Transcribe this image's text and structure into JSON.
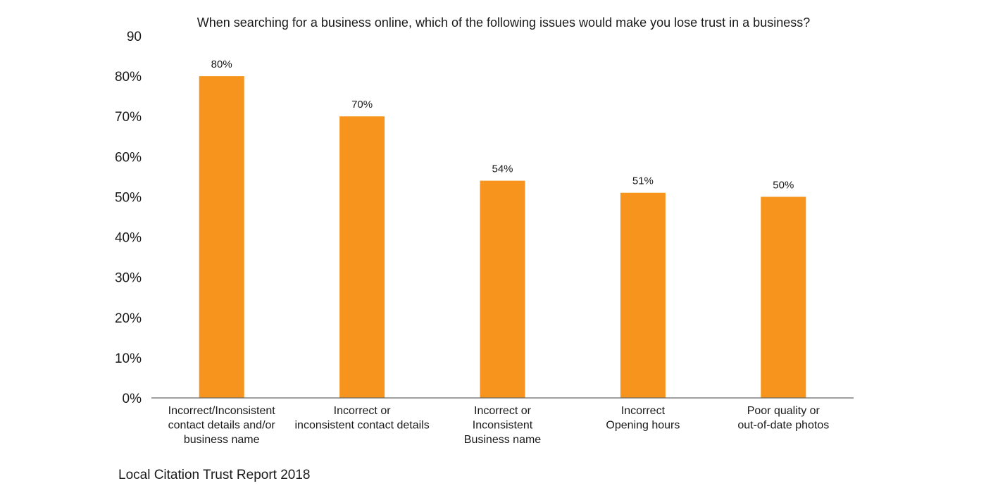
{
  "chart_data": {
    "type": "bar",
    "title": "When searching for a business online, which of the following issues would make you lose trust in a business?",
    "categories": [
      [
        "Incorrect/Inconsistent",
        "contact details and/or",
        "business name"
      ],
      [
        "Incorrect or",
        "inconsistent contact details"
      ],
      [
        "Incorrect or",
        "Inconsistent",
        "Business name"
      ],
      [
        "Incorrect",
        "Opening hours"
      ],
      [
        "Poor quality or",
        "out-of-date photos"
      ]
    ],
    "values": [
      80,
      70,
      54,
      51,
      50
    ],
    "data_labels": [
      "80%",
      "70%",
      "54%",
      "51%",
      "50%"
    ],
    "yticks": [
      {
        "value": 0,
        "label": "0%"
      },
      {
        "value": 10,
        "label": "10%"
      },
      {
        "value": 20,
        "label": "20%"
      },
      {
        "value": 30,
        "label": "30%"
      },
      {
        "value": 40,
        "label": "40%"
      },
      {
        "value": 50,
        "label": "50%"
      },
      {
        "value": 60,
        "label": "60%"
      },
      {
        "value": 70,
        "label": "70%"
      },
      {
        "value": 80,
        "label": "80%"
      },
      {
        "value": 90,
        "label": "90"
      }
    ],
    "ylim": [
      0,
      90
    ],
    "xlabel": "",
    "ylabel": "",
    "grid": false,
    "legend": "none",
    "bar_color": "#F7941D",
    "axis_color": "#666666"
  },
  "footer": {
    "source": "Local Citation Trust Report 2018"
  }
}
